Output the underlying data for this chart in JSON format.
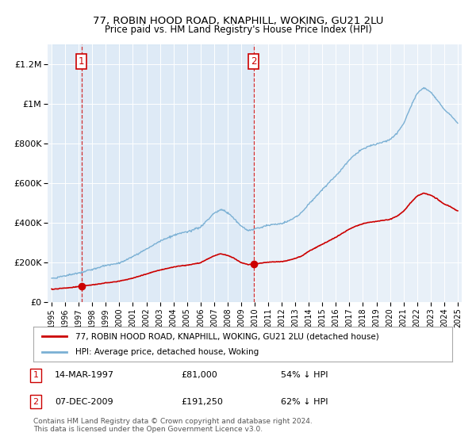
{
  "title": "77, ROBIN HOOD ROAD, KNAPHILL, WOKING, GU21 2LU",
  "subtitle": "Price paid vs. HM Land Registry's House Price Index (HPI)",
  "legend_label_red": "77, ROBIN HOOD ROAD, KNAPHILL, WOKING, GU21 2LU (detached house)",
  "legend_label_blue": "HPI: Average price, detached house, Woking",
  "annotation1_label": "1",
  "annotation1_date": "14-MAR-1997",
  "annotation1_price": "£81,000",
  "annotation1_hpi": "54% ↓ HPI",
  "annotation2_label": "2",
  "annotation2_date": "07-DEC-2009",
  "annotation2_price": "£191,250",
  "annotation2_hpi": "62% ↓ HPI",
  "footnote": "Contains HM Land Registry data © Crown copyright and database right 2024.\nThis data is licensed under the Open Government Licence v3.0.",
  "sale1_year": 1997.2,
  "sale1_price": 81000,
  "sale2_year": 2009.92,
  "sale2_price": 191250,
  "y_max": 1300000,
  "red_color": "#cc0000",
  "blue_color": "#7ab0d4",
  "plot_bg": "#e8f0f8",
  "shaded_bg": "#dce8f5"
}
